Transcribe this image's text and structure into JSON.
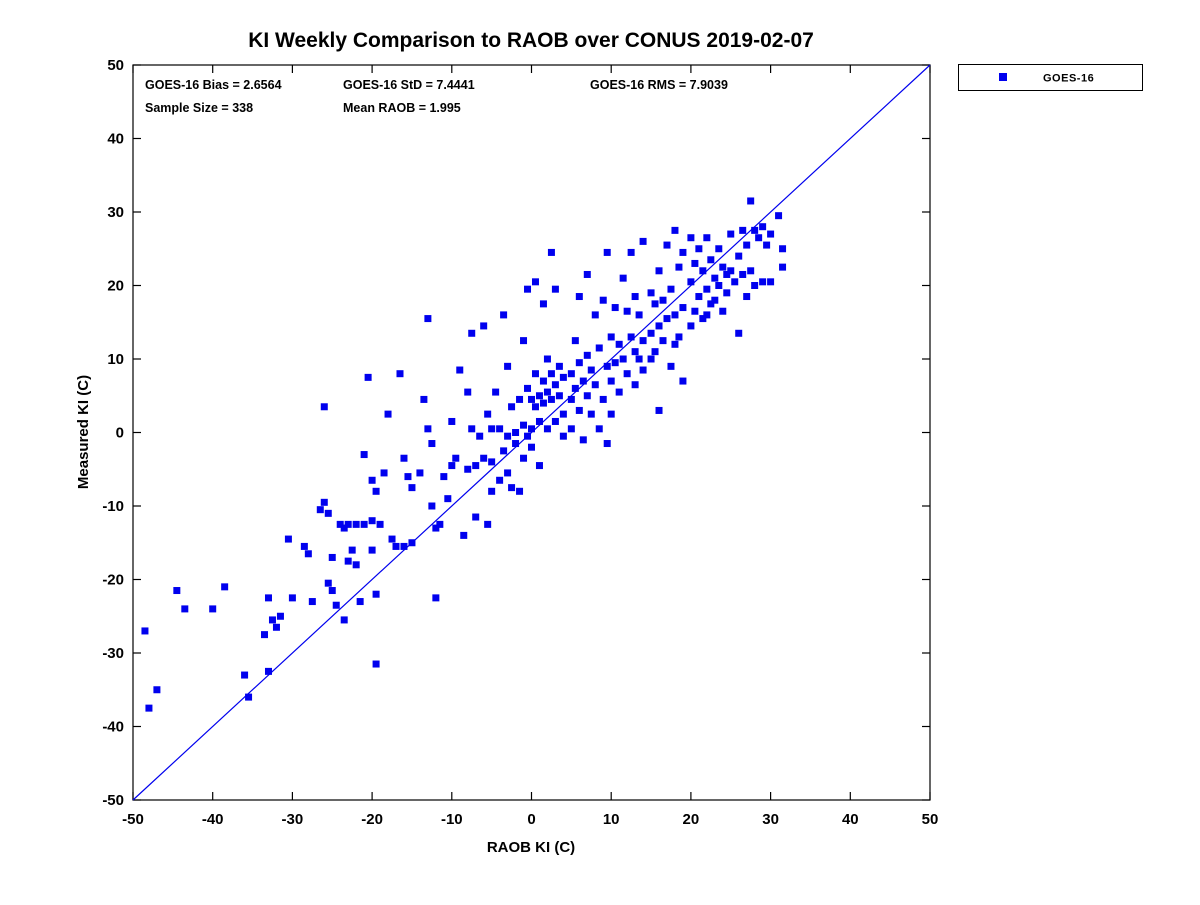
{
  "title": "KI Weekly Comparison to RAOB over CONUS 2019-02-07",
  "annotations": {
    "bias": "GOES-16 Bias = 2.6564",
    "std": "GOES-16 StD = 7.4441",
    "rms": "GOES-16 RMS = 7.9039",
    "sample_size": "Sample Size = 338",
    "mean_raob": "Mean RAOB = 1.995"
  },
  "legend": {
    "label": "GOES-16",
    "marker_color": "#0000EE",
    "position": "top-right-outside"
  },
  "colors": {
    "marker": "#0000EE",
    "reference_line": "#0000EE",
    "axis": "#000000",
    "background": "#FFFFFF"
  },
  "chart_data": {
    "type": "scatter",
    "title": "KI Weekly Comparison to RAOB over CONUS 2019-02-07",
    "xlabel": "RAOB KI (C)",
    "ylabel": "Measured KI (C)",
    "xlim": [
      -50,
      50
    ],
    "ylim": [
      -50,
      50
    ],
    "x_ticks": [
      -50,
      -40,
      -30,
      -20,
      -10,
      0,
      10,
      20,
      30,
      40,
      50
    ],
    "y_ticks": [
      -50,
      -40,
      -30,
      -20,
      -10,
      0,
      10,
      20,
      30,
      40,
      50
    ],
    "grid": false,
    "box": true,
    "reference_line": {
      "from": [
        -50,
        -50
      ],
      "to": [
        50,
        50
      ]
    },
    "stats": {
      "bias": 2.6564,
      "std": 7.4441,
      "rms": 7.9039,
      "sample_size": 338,
      "mean_raob": 1.995
    },
    "series": [
      {
        "name": "GOES-16",
        "marker": "square",
        "color": "#0000EE",
        "points": [
          [
            -48.5,
            -27
          ],
          [
            -48,
            -37.5
          ],
          [
            -47,
            -35
          ],
          [
            -44.5,
            -21.5
          ],
          [
            -43.5,
            -24
          ],
          [
            -40,
            -24
          ],
          [
            -38.5,
            -21
          ],
          [
            -36,
            -33
          ],
          [
            -35.5,
            -36
          ],
          [
            -33.5,
            -27.5
          ],
          [
            -33,
            -32.5
          ],
          [
            -33,
            -22.5
          ],
          [
            -32.5,
            -25.5
          ],
          [
            -32,
            -26.5
          ],
          [
            -31.5,
            -25
          ],
          [
            -30.5,
            -14.5
          ],
          [
            -30,
            -22.5
          ],
          [
            -28.5,
            -15.5
          ],
          [
            -28,
            -16.5
          ],
          [
            -27.5,
            -23
          ],
          [
            -26.5,
            -10.5
          ],
          [
            -26,
            3.5
          ],
          [
            -26,
            -9.5
          ],
          [
            -25.5,
            -11
          ],
          [
            -25.5,
            -20.5
          ],
          [
            -25,
            -17
          ],
          [
            -25,
            -21.5
          ],
          [
            -24.5,
            -23.5
          ],
          [
            -24,
            -12.5
          ],
          [
            -23.5,
            -13
          ],
          [
            -23.5,
            -25.5
          ],
          [
            -23,
            -12.5
          ],
          [
            -23,
            -17.5
          ],
          [
            -22.5,
            -16
          ],
          [
            -22,
            -12.5
          ],
          [
            -22,
            -18
          ],
          [
            -21.5,
            -23
          ],
          [
            -21,
            -12.5
          ],
          [
            -21,
            -3
          ],
          [
            -20.5,
            7.5
          ],
          [
            -20,
            -6.5
          ],
          [
            -20,
            -12
          ],
          [
            -20,
            -16
          ],
          [
            -19.5,
            -31.5
          ],
          [
            -19.5,
            -8
          ],
          [
            -19.5,
            -22
          ],
          [
            -19,
            -12.5
          ],
          [
            -18.5,
            -5.5
          ],
          [
            -18,
            2.5
          ],
          [
            -17.5,
            -14.5
          ],
          [
            -17,
            -15.5
          ],
          [
            -16.5,
            8
          ],
          [
            -16,
            -15.5
          ],
          [
            -16,
            -3.5
          ],
          [
            -15.5,
            -6
          ],
          [
            -15,
            -15
          ],
          [
            -15,
            -7.5
          ],
          [
            -14,
            -5.5
          ],
          [
            -13.5,
            4.5
          ],
          [
            -13,
            15.5
          ],
          [
            -13,
            0.5
          ],
          [
            -12.5,
            -1.5
          ],
          [
            -12.5,
            -10
          ],
          [
            -12,
            -22.5
          ],
          [
            -12,
            -13
          ],
          [
            -11.5,
            -12.5
          ],
          [
            -11,
            -6
          ],
          [
            -10.5,
            -9
          ],
          [
            -10,
            -4.5
          ],
          [
            -10,
            1.5
          ],
          [
            -9.5,
            -3.5
          ],
          [
            -9,
            8.5
          ],
          [
            -8.5,
            -14
          ],
          [
            -8,
            5.5
          ],
          [
            -8,
            -5
          ],
          [
            -7.5,
            13.5
          ],
          [
            -7.5,
            0.5
          ],
          [
            -7,
            -4.5
          ],
          [
            -7,
            -11.5
          ],
          [
            -6.5,
            -0.5
          ],
          [
            -6,
            14.5
          ],
          [
            -6,
            -3.5
          ],
          [
            -5.5,
            -12.5
          ],
          [
            -5.5,
            2.5
          ],
          [
            -5,
            -4
          ],
          [
            -5,
            -8
          ],
          [
            -5,
            0.5
          ],
          [
            -4.5,
            5.5
          ],
          [
            -4,
            -6.5
          ],
          [
            -4,
            0.5
          ],
          [
            -3.5,
            16
          ],
          [
            -3.5,
            -2.5
          ],
          [
            -3,
            9
          ],
          [
            -3,
            -0.5
          ],
          [
            -3,
            -5.5
          ],
          [
            -2.5,
            3.5
          ],
          [
            -2.5,
            -7.5
          ],
          [
            -2,
            0
          ],
          [
            -2,
            -1.5
          ],
          [
            -1.5,
            4.5
          ],
          [
            -1.5,
            -8
          ],
          [
            -1,
            12.5
          ],
          [
            -1,
            1
          ],
          [
            -1,
            -3.5
          ],
          [
            -0.5,
            19.5
          ],
          [
            -0.5,
            6
          ],
          [
            -0.5,
            -0.5
          ],
          [
            0,
            4.5
          ],
          [
            0,
            0.5
          ],
          [
            0,
            -2
          ],
          [
            0.5,
            20.5
          ],
          [
            0.5,
            8
          ],
          [
            0.5,
            3.5
          ],
          [
            1,
            5
          ],
          [
            1,
            1.5
          ],
          [
            1,
            -4.5
          ],
          [
            1.5,
            17.5
          ],
          [
            1.5,
            7
          ],
          [
            1.5,
            4
          ],
          [
            2,
            10
          ],
          [
            2,
            5.5
          ],
          [
            2,
            0.5
          ],
          [
            2.5,
            24.5
          ],
          [
            2.5,
            8
          ],
          [
            2.5,
            4.5
          ],
          [
            3,
            19.5
          ],
          [
            3,
            6.5
          ],
          [
            3,
            1.5
          ],
          [
            3.5,
            9
          ],
          [
            3.5,
            5
          ],
          [
            4,
            7.5
          ],
          [
            4,
            2.5
          ],
          [
            4,
            -0.5
          ],
          [
            5,
            8
          ],
          [
            5,
            4.5
          ],
          [
            5,
            0.5
          ],
          [
            5.5,
            12.5
          ],
          [
            5.5,
            6
          ],
          [
            6,
            18.5
          ],
          [
            6,
            9.5
          ],
          [
            6,
            3
          ],
          [
            6.5,
            7
          ],
          [
            6.5,
            -1
          ],
          [
            7,
            21.5
          ],
          [
            7,
            10.5
          ],
          [
            7,
            5
          ],
          [
            7.5,
            8.5
          ],
          [
            7.5,
            2.5
          ],
          [
            8,
            16
          ],
          [
            8,
            6.5
          ],
          [
            8.5,
            11.5
          ],
          [
            8.5,
            0.5
          ],
          [
            9,
            18
          ],
          [
            9,
            4.5
          ],
          [
            9.5,
            24.5
          ],
          [
            9.5,
            9
          ],
          [
            9.5,
            -1.5
          ],
          [
            10,
            13
          ],
          [
            10,
            7
          ],
          [
            10,
            2.5
          ],
          [
            10.5,
            17
          ],
          [
            10.5,
            9.5
          ],
          [
            11,
            12
          ],
          [
            11,
            5.5
          ],
          [
            11.5,
            21
          ],
          [
            11.5,
            10
          ],
          [
            12,
            16.5
          ],
          [
            12,
            8
          ],
          [
            12.5,
            24.5
          ],
          [
            12.5,
            13
          ],
          [
            13,
            18.5
          ],
          [
            13,
            11
          ],
          [
            13,
            6.5
          ],
          [
            13.5,
            16
          ],
          [
            13.5,
            10
          ],
          [
            14,
            26
          ],
          [
            14,
            12.5
          ],
          [
            14,
            8.5
          ],
          [
            15,
            19
          ],
          [
            15,
            13.5
          ],
          [
            15,
            10
          ],
          [
            15.5,
            17.5
          ],
          [
            15.5,
            11
          ],
          [
            16,
            22
          ],
          [
            16,
            14.5
          ],
          [
            16,
            3
          ],
          [
            16.5,
            18
          ],
          [
            16.5,
            12.5
          ],
          [
            17,
            25.5
          ],
          [
            17,
            15.5
          ],
          [
            17.5,
            19.5
          ],
          [
            17.5,
            9
          ],
          [
            18,
            27.5
          ],
          [
            18,
            16
          ],
          [
            18,
            12
          ],
          [
            18.5,
            22.5
          ],
          [
            18.5,
            13
          ],
          [
            19,
            24.5
          ],
          [
            19,
            17
          ],
          [
            19,
            7
          ],
          [
            20,
            26.5
          ],
          [
            20,
            20.5
          ],
          [
            20,
            14.5
          ],
          [
            20.5,
            23
          ],
          [
            20.5,
            16.5
          ],
          [
            21,
            25
          ],
          [
            21,
            18.5
          ],
          [
            21.5,
            22
          ],
          [
            21.5,
            15.5
          ],
          [
            22,
            26.5
          ],
          [
            22,
            19.5
          ],
          [
            22,
            16
          ],
          [
            22.5,
            23.5
          ],
          [
            22.5,
            17.5
          ],
          [
            23,
            21
          ],
          [
            23,
            18
          ],
          [
            23.5,
            25
          ],
          [
            23.5,
            20
          ],
          [
            24,
            22.5
          ],
          [
            24,
            16.5
          ],
          [
            24.5,
            21.5
          ],
          [
            24.5,
            19
          ],
          [
            25,
            27
          ],
          [
            25,
            22
          ],
          [
            25.5,
            20.5
          ],
          [
            26,
            24
          ],
          [
            26,
            13.5
          ],
          [
            26.5,
            27.5
          ],
          [
            26.5,
            21.5
          ],
          [
            27,
            25.5
          ],
          [
            27,
            18.5
          ],
          [
            27.5,
            31.5
          ],
          [
            27.5,
            22
          ],
          [
            28,
            27.5
          ],
          [
            28,
            20
          ],
          [
            28.5,
            26.5
          ],
          [
            29,
            28
          ],
          [
            29,
            20.5
          ],
          [
            29.5,
            25.5
          ],
          [
            30,
            27
          ],
          [
            30,
            20.5
          ],
          [
            31,
            29.5
          ],
          [
            31.5,
            25
          ],
          [
            31.5,
            22.5
          ]
        ]
      }
    ]
  }
}
